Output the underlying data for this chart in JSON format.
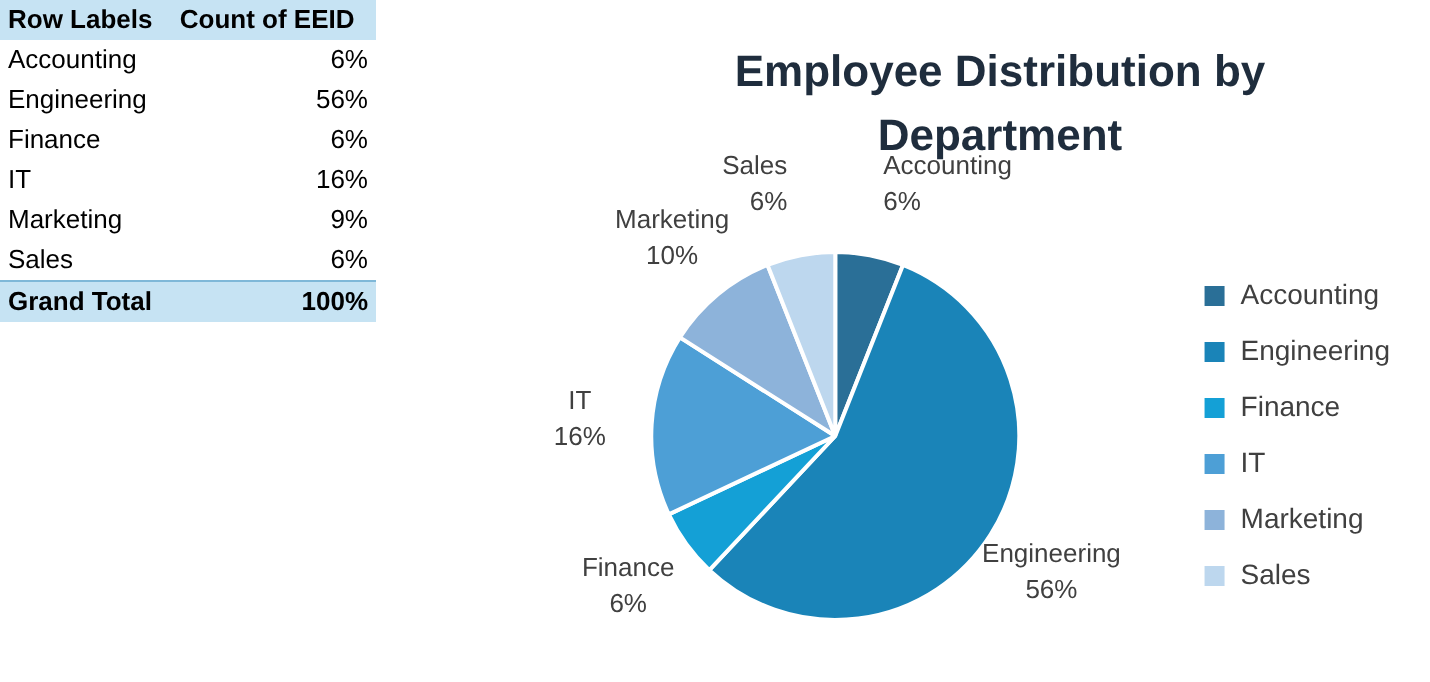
{
  "chart_data": {
    "type": "pie",
    "title": "Employee Distribution by Department",
    "categories": [
      "Accounting",
      "Engineering",
      "Finance",
      "IT",
      "Marketing",
      "Sales"
    ],
    "values": [
      6,
      56,
      6,
      16,
      10,
      6
    ],
    "colors": [
      "#2a6f97",
      "#1a84b8",
      "#14a0d6",
      "#4d9fd6",
      "#8db3da",
      "#bdd7ee"
    ],
    "value_labels": [
      "6%",
      "56%",
      "6%",
      "16%",
      "10%",
      "6%"
    ],
    "legend": "right",
    "annotations": [
      "Row Labels",
      "Count of EEID",
      "Accounting",
      "6%",
      "Engineering",
      "56%",
      "Finance",
      "6%",
      "IT",
      "16%",
      "Marketing",
      "9%",
      "Sales",
      "6%",
      "Grand Total",
      "100%"
    ]
  }
}
